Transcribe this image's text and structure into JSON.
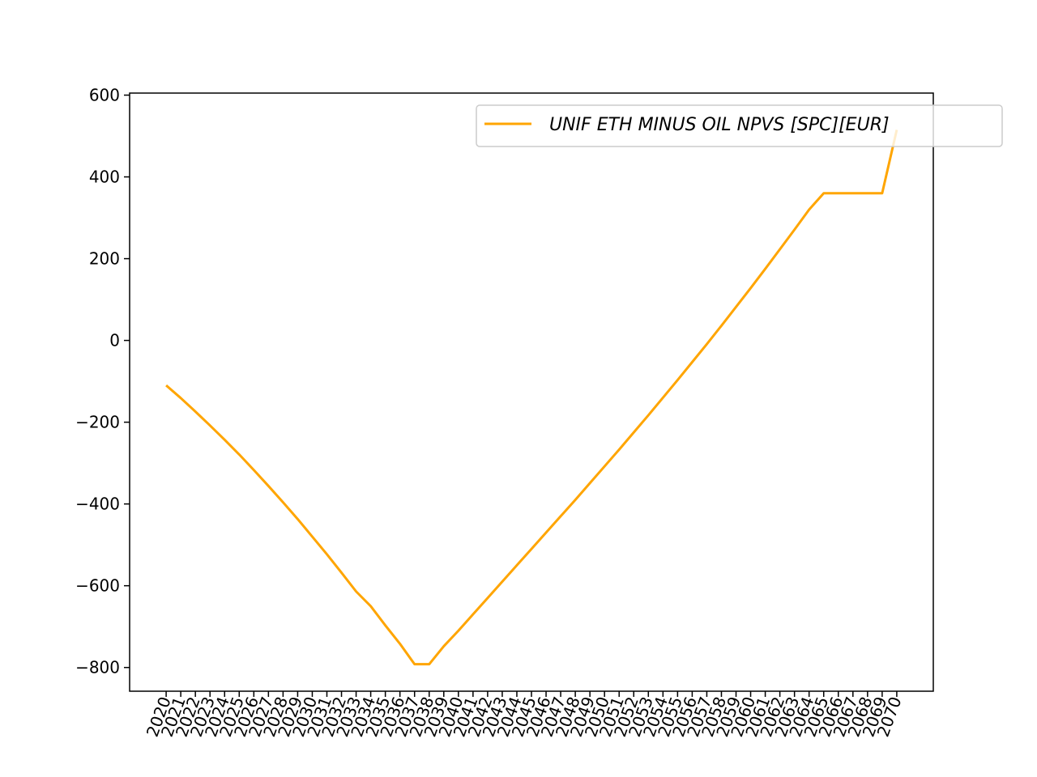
{
  "chart_data": {
    "type": "line",
    "title": "",
    "xlabel": "",
    "ylabel": "",
    "x": [
      2020,
      2021,
      2022,
      2023,
      2024,
      2025,
      2026,
      2027,
      2028,
      2029,
      2030,
      2031,
      2032,
      2033,
      2034,
      2035,
      2036,
      2037,
      2038,
      2039,
      2040,
      2041,
      2042,
      2043,
      2044,
      2045,
      2046,
      2047,
      2048,
      2049,
      2050,
      2051,
      2052,
      2053,
      2054,
      2055,
      2056,
      2057,
      2058,
      2059,
      2060,
      2061,
      2062,
      2063,
      2064,
      2065,
      2066,
      2067,
      2068,
      2069,
      2070
    ],
    "x_tick_labels": [
      "2020",
      "2021",
      "2022",
      "2023",
      "2024",
      "2025",
      "2026",
      "2027",
      "2028",
      "2029",
      "2030",
      "2031",
      "2032",
      "2033",
      "2034",
      "2035",
      "2036",
      "2037",
      "2038",
      "2039",
      "2040",
      "2041",
      "2042",
      "2043",
      "2044",
      "2045",
      "2046",
      "2047",
      "2048",
      "2049",
      "2050",
      "2051",
      "2052",
      "2053",
      "2054",
      "2055",
      "2056",
      "2057",
      "2058",
      "2059",
      "2060",
      "2061",
      "2062",
      "2063",
      "2064",
      "2065",
      "2066",
      "2067",
      "2068",
      "2069",
      "2070"
    ],
    "y_ticks": [
      600,
      400,
      200,
      0,
      -200,
      -400,
      -600,
      -800
    ],
    "y_tick_labels": [
      "600",
      "400",
      "200",
      "0",
      "−200",
      "−400",
      "−600",
      "−800"
    ],
    "ylim": [
      -858,
      605
    ],
    "xlim": [
      2017.5,
      2072.5
    ],
    "grid": false,
    "legend_position": "top-right",
    "series": [
      {
        "name": "UNIF ETH MINUS OIL NPVS [SPC][EUR]",
        "color": "#ffa500",
        "values": [
          -110,
          -141,
          -174,
          -208,
          -243,
          -279,
          -317,
          -356,
          -396,
          -437,
          -480,
          -523,
          -568,
          -614,
          -650,
          -697,
          -742,
          -792,
          -792,
          -748,
          -710,
          -670,
          -630,
          -590,
          -550,
          -510,
          -470,
          -430,
          -390,
          -349,
          -308,
          -267,
          -225,
          -183,
          -140,
          -97,
          -53,
          -9,
          36,
          82,
          128,
          175,
          223,
          271,
          320,
          360,
          360,
          360,
          360,
          360,
          515
        ]
      }
    ]
  }
}
